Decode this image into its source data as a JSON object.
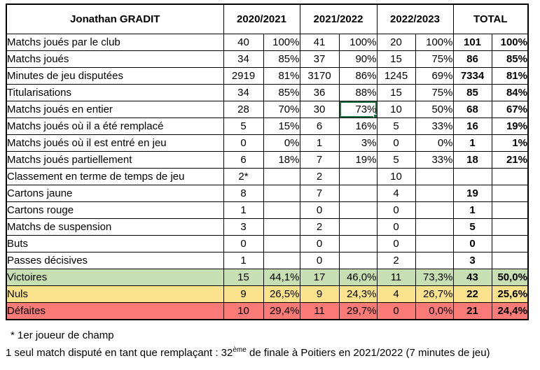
{
  "player": "Jonathan GRADIT",
  "header": {
    "seasons": [
      "2020/2021",
      "2021/2022",
      "2022/2023"
    ],
    "total": "TOTAL"
  },
  "table": {
    "column_groups": [
      "2020/2021 count",
      "2020/2021 percent",
      "2021/2022 count",
      "2021/2022 percent",
      "2022/2023 count",
      "2022/2023 percent",
      "TOTAL count",
      "TOTAL percent"
    ],
    "rows": [
      {
        "label": "Matchs joués par le club",
        "values": [
          "40",
          "100%",
          "41",
          "100%",
          "20",
          "100%",
          "101",
          "100%"
        ]
      },
      {
        "label": "Matchs joués",
        "values": [
          "34",
          "85%",
          "37",
          "90%",
          "15",
          "75%",
          "86",
          "85%"
        ]
      },
      {
        "label": "Minutes de jeu disputées",
        "values": [
          "2919",
          "81%",
          "3170",
          "86%",
          "1245",
          "69%",
          "7334",
          "81%"
        ]
      },
      {
        "label": "Titularisations",
        "values": [
          "34",
          "85%",
          "36",
          "88%",
          "15",
          "75%",
          "85",
          "84%"
        ]
      },
      {
        "label": "Matchs joués en entier",
        "values": [
          "28",
          "70%",
          "30",
          "73%",
          "10",
          "50%",
          "68",
          "67%"
        ],
        "selected": 3
      },
      {
        "label": "Matchs joués où il a été remplacé",
        "values": [
          "5",
          "15%",
          "6",
          "16%",
          "5",
          "33%",
          "16",
          "19%"
        ]
      },
      {
        "label": "Matchs joués où il est entré en jeu",
        "values": [
          "0",
          "0%",
          "1",
          "3%",
          "0",
          "0%",
          "1",
          "1%"
        ]
      },
      {
        "label": "Matchs joués partiellement",
        "values": [
          "6",
          "18%",
          "7",
          "19%",
          "5",
          "33%",
          "18",
          "21%"
        ]
      },
      {
        "label": "Classement en terme de temps de jeu",
        "values": [
          "2*",
          null,
          "2",
          null,
          "10",
          null,
          null,
          null
        ]
      },
      {
        "label": "Cartons jaune",
        "values": [
          "8",
          null,
          "7",
          null,
          "4",
          null,
          "19",
          null
        ]
      },
      {
        "label": "Cartons rouge",
        "values": [
          "1",
          null,
          "0",
          null,
          "0",
          null,
          "1",
          null
        ]
      },
      {
        "label": "Matchs de suspension",
        "values": [
          "3",
          null,
          "2",
          null,
          "0",
          null,
          "5",
          null
        ]
      },
      {
        "label": "Buts",
        "values": [
          "0",
          null,
          "0",
          null,
          "0",
          null,
          "0",
          null
        ]
      },
      {
        "label": "Passes décisives",
        "values": [
          "1",
          null,
          "0",
          null,
          "2",
          null,
          "3",
          null
        ]
      },
      {
        "label": "Victoires",
        "values": [
          "15",
          "44,1%",
          "17",
          "46,0%",
          "11",
          "73,3%",
          "43",
          "50,0%"
        ],
        "bg": "win"
      },
      {
        "label": "Nuls",
        "values": [
          "9",
          "26,5%",
          "9",
          "24,3%",
          "4",
          "26,7%",
          "22",
          "25,6%"
        ],
        "bg": "draw"
      },
      {
        "label": "Défaites",
        "values": [
          "10",
          "29,4%",
          "11",
          "29,7%",
          "0",
          "0,0%",
          "21",
          "24,4%"
        ],
        "bg": "loss"
      }
    ]
  },
  "footnotes": {
    "note1": "* 1er joueur de champ",
    "note2_prefix": "1 seul match disputé en tant que remplaçant : 32",
    "note2_sup": "ème",
    "note2_suffix": " de finale à Poitiers en 2021/2022 (7 minutes de jeu)"
  },
  "colors": {
    "player_header_bg": "#F3AC81",
    "season_header_bg": "#FBE2D2",
    "total_header_bg": "#D5DBEC",
    "win_row_bg": "#C8DFB4",
    "draw_row_bg": "#FBE38D",
    "loss_row_bg": "#FA7A78",
    "blacked_cell_bg": "#000000",
    "selection_border": "#1F7245",
    "grid_border": "#000000"
  }
}
